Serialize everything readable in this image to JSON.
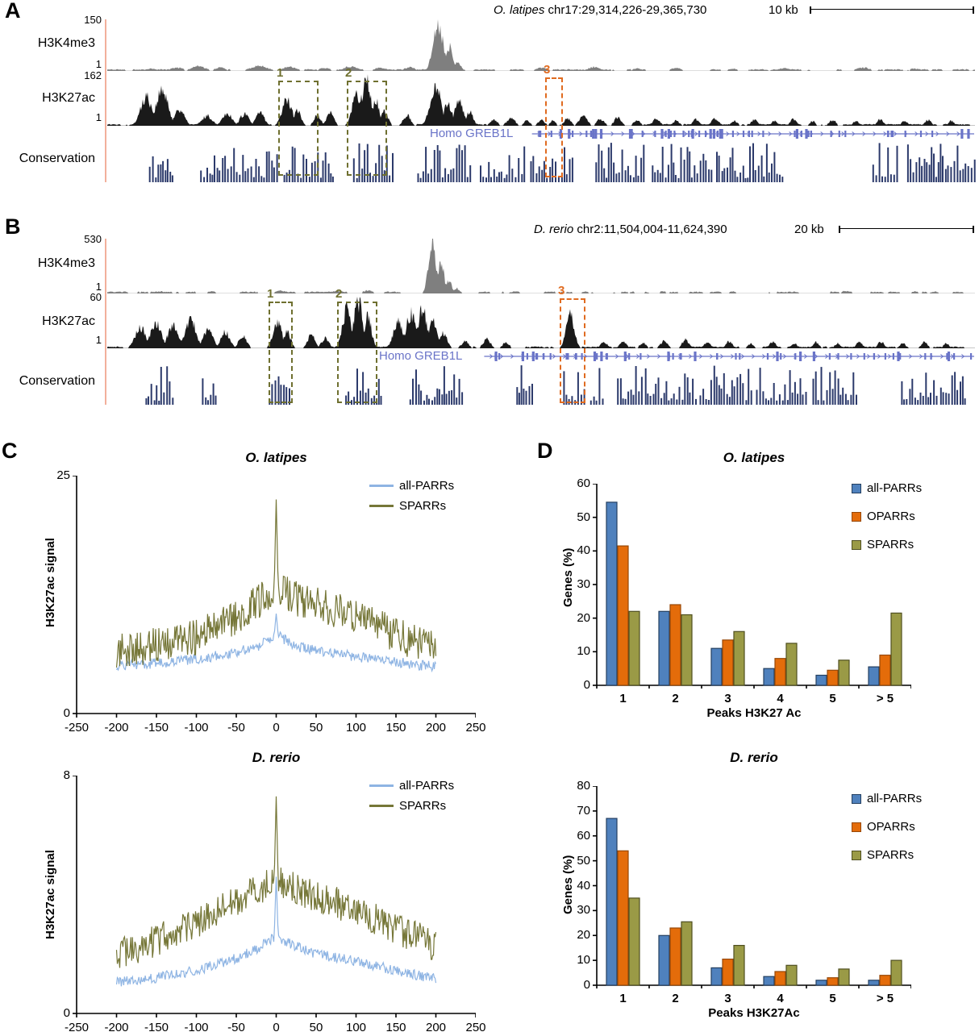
{
  "colors": {
    "blue_bar": "#4f81bd",
    "blue_bar_border": "#243f60",
    "orange_bar": "#e46c0a",
    "orange_bar_border": "#974807",
    "olive_bar": "#9a9a46",
    "olive_bar_border": "#4f4f20",
    "blue_line": "#8eb4e3",
    "olive_line": "#767738",
    "h3k4me3": "#7f7f7f",
    "h3k27ac": "#1a1a1a",
    "gene": "#6a74c8",
    "conservation": "#2c3a6b",
    "box_olive": "#6f7030",
    "box_orange": "#e06b20",
    "axis_line": "#f2b09c"
  },
  "panel_a": {
    "label": "A",
    "species": "O. latipes",
    "coords": " chr17:29,314,226-29,365,730",
    "scale": "10 kb",
    "h3k4me3": {
      "label": "H3K4me3",
      "max": "150",
      "min": "1",
      "peaks": [
        [
          0.05,
          0.05,
          0.012
        ],
        [
          0.08,
          0.07,
          0.015
        ],
        [
          0.105,
          0.1,
          0.018
        ],
        [
          0.13,
          0.07,
          0.014
        ],
        [
          0.175,
          0.1,
          0.022
        ],
        [
          0.21,
          0.08,
          0.018
        ],
        [
          0.25,
          0.06,
          0.014
        ],
        [
          0.28,
          0.09,
          0.018
        ],
        [
          0.315,
          0.07,
          0.014
        ],
        [
          0.348,
          0.08,
          0.012
        ],
        [
          0.381,
          1.0,
          0.012
        ],
        [
          0.393,
          0.52,
          0.009
        ],
        [
          0.403,
          0.2,
          0.008
        ],
        [
          0.5,
          0.06,
          0.016
        ],
        [
          0.56,
          0.08,
          0.014
        ],
        [
          0.61,
          0.05,
          0.012
        ],
        [
          0.655,
          0.06,
          0.014
        ],
        [
          0.72,
          0.05,
          0.012
        ],
        [
          0.78,
          0.06,
          0.014
        ],
        [
          0.87,
          0.07,
          0.016
        ],
        [
          0.93,
          0.05,
          0.012
        ]
      ]
    },
    "h3k27ac": {
      "label": "H3K27ac",
      "max": "162",
      "min": "1",
      "peaks": [
        [
          0.045,
          0.6,
          0.014
        ],
        [
          0.063,
          0.7,
          0.015
        ],
        [
          0.083,
          0.34,
          0.012
        ],
        [
          0.115,
          0.2,
          0.013
        ],
        [
          0.138,
          0.26,
          0.012
        ],
        [
          0.158,
          0.24,
          0.011
        ],
        [
          0.176,
          0.28,
          0.01
        ],
        [
          0.207,
          0.55,
          0.012
        ],
        [
          0.219,
          0.3,
          0.009
        ],
        [
          0.242,
          0.2,
          0.009
        ],
        [
          0.257,
          0.26,
          0.009
        ],
        [
          0.287,
          0.62,
          0.011
        ],
        [
          0.298,
          0.92,
          0.012
        ],
        [
          0.309,
          0.52,
          0.009
        ],
        [
          0.319,
          0.28,
          0.009
        ],
        [
          0.345,
          0.22,
          0.009
        ],
        [
          0.378,
          0.85,
          0.013
        ],
        [
          0.392,
          0.45,
          0.011
        ],
        [
          0.405,
          0.48,
          0.011
        ],
        [
          0.417,
          0.28,
          0.009
        ],
        [
          0.445,
          0.12,
          0.009
        ],
        [
          0.465,
          0.16,
          0.01
        ],
        [
          0.483,
          0.1,
          0.008
        ],
        [
          0.5,
          0.12,
          0.008
        ],
        [
          0.513,
          0.1,
          0.007
        ],
        [
          0.53,
          0.14,
          0.009
        ],
        [
          0.548,
          0.2,
          0.01
        ],
        [
          0.568,
          0.14,
          0.009
        ],
        [
          0.588,
          0.17,
          0.009
        ],
        [
          0.61,
          0.12,
          0.008
        ],
        [
          0.632,
          0.14,
          0.009
        ],
        [
          0.655,
          0.1,
          0.008
        ],
        [
          0.678,
          0.13,
          0.008
        ],
        [
          0.7,
          0.15,
          0.009
        ],
        [
          0.722,
          0.1,
          0.008
        ],
        [
          0.745,
          0.12,
          0.008
        ],
        [
          0.768,
          0.1,
          0.007
        ],
        [
          0.79,
          0.13,
          0.008
        ],
        [
          0.812,
          0.1,
          0.007
        ],
        [
          0.835,
          0.12,
          0.008
        ],
        [
          0.862,
          0.1,
          0.007
        ],
        [
          0.89,
          0.13,
          0.008
        ],
        [
          0.918,
          0.1,
          0.007
        ],
        [
          0.945,
          0.12,
          0.008
        ],
        [
          0.972,
          0.1,
          0.007
        ]
      ]
    },
    "gene": {
      "label": "Homo GREB1L",
      "start": 0.489
    },
    "conservation": {
      "label": "Conservation",
      "clusters": [
        [
          0.048,
          0.028
        ],
        [
          0.107,
          0.09
        ],
        [
          0.203,
          0.056
        ],
        [
          0.283,
          0.045
        ],
        [
          0.357,
          0.062
        ],
        [
          0.429,
          0.051
        ],
        [
          0.487,
          0.05
        ],
        [
          0.562,
          0.058
        ],
        [
          0.627,
          0.069
        ],
        [
          0.701,
          0.078
        ],
        [
          0.881,
          0.028
        ],
        [
          0.921,
          0.077
        ]
      ]
    },
    "boxes": [
      {
        "num": "1",
        "x": 0.197,
        "w": 0.046,
        "color": "olive"
      },
      {
        "num": "2",
        "x": 0.276,
        "w": 0.046,
        "color": "olive"
      },
      {
        "num": "3",
        "x": 0.504,
        "w": 0.02,
        "color": "orange"
      }
    ]
  },
  "panel_b": {
    "label": "B",
    "species": "D. rerio",
    "coords": " chr2:11,504,004-11,624,390",
    "scale": "20 kb",
    "h3k4me3": {
      "label": "H3K4me3",
      "max": "530",
      "min": "1",
      "peaks": [
        [
          0.06,
          0.04,
          0.015
        ],
        [
          0.12,
          0.04,
          0.014
        ],
        [
          0.2,
          0.05,
          0.016
        ],
        [
          0.265,
          0.05,
          0.013
        ],
        [
          0.3,
          0.06,
          0.012
        ],
        [
          0.374,
          1.0,
          0.009
        ],
        [
          0.384,
          0.58,
          0.008
        ],
        [
          0.393,
          0.24,
          0.008
        ],
        [
          0.402,
          0.1,
          0.008
        ],
        [
          0.47,
          0.04,
          0.01
        ],
        [
          0.55,
          0.04,
          0.01
        ],
        [
          0.64,
          0.04,
          0.01
        ],
        [
          0.72,
          0.04,
          0.01
        ],
        [
          0.85,
          0.05,
          0.011
        ],
        [
          0.93,
          0.04,
          0.01
        ]
      ]
    },
    "h3k27ac": {
      "label": "H3K27ac",
      "max": "60",
      "min": "1",
      "peaks": [
        [
          0.038,
          0.42,
          0.013
        ],
        [
          0.056,
          0.52,
          0.013
        ],
        [
          0.076,
          0.48,
          0.013
        ],
        [
          0.096,
          0.58,
          0.013
        ],
        [
          0.116,
          0.38,
          0.012
        ],
        [
          0.136,
          0.33,
          0.011
        ],
        [
          0.156,
          0.24,
          0.01
        ],
        [
          0.196,
          0.52,
          0.011
        ],
        [
          0.207,
          0.33,
          0.009
        ],
        [
          0.235,
          0.28,
          0.009
        ],
        [
          0.251,
          0.21,
          0.009
        ],
        [
          0.276,
          0.78,
          0.011
        ],
        [
          0.289,
          0.95,
          0.011
        ],
        [
          0.3,
          0.65,
          0.009
        ],
        [
          0.335,
          0.52,
          0.012
        ],
        [
          0.35,
          0.7,
          0.013
        ],
        [
          0.363,
          0.76,
          0.012
        ],
        [
          0.375,
          0.52,
          0.011
        ],
        [
          0.387,
          0.33,
          0.009
        ],
        [
          0.412,
          0.14,
          0.009
        ],
        [
          0.437,
          0.19,
          0.009
        ],
        [
          0.459,
          0.12,
          0.008
        ],
        [
          0.533,
          0.68,
          0.01
        ],
        [
          0.572,
          0.12,
          0.009
        ],
        [
          0.594,
          0.15,
          0.008
        ],
        [
          0.617,
          0.11,
          0.008
        ],
        [
          0.641,
          0.14,
          0.009
        ],
        [
          0.666,
          0.17,
          0.009
        ],
        [
          0.691,
          0.12,
          0.008
        ],
        [
          0.716,
          0.14,
          0.008
        ],
        [
          0.741,
          0.1,
          0.007
        ],
        [
          0.766,
          0.13,
          0.008
        ],
        [
          0.791,
          0.1,
          0.007
        ],
        [
          0.816,
          0.12,
          0.008
        ],
        [
          0.841,
          0.1,
          0.007
        ],
        [
          0.866,
          0.12,
          0.008
        ],
        [
          0.891,
          0.13,
          0.008
        ],
        [
          0.916,
          0.1,
          0.007
        ],
        [
          0.941,
          0.12,
          0.008
        ],
        [
          0.966,
          0.1,
          0.007
        ]
      ]
    },
    "gene": {
      "label": "Homo GREB1L",
      "start": 0.434
    },
    "conservation": {
      "label": "Conservation",
      "clusters": [
        [
          0.044,
          0.032
        ],
        [
          0.109,
          0.017
        ],
        [
          0.186,
          0.025
        ],
        [
          0.274,
          0.041
        ],
        [
          0.348,
          0.062
        ],
        [
          0.471,
          0.02
        ],
        [
          0.525,
          0.026
        ],
        [
          0.556,
          0.015
        ],
        [
          0.587,
          0.028
        ],
        [
          0.619,
          0.058
        ],
        [
          0.682,
          0.059
        ],
        [
          0.747,
          0.059
        ],
        [
          0.812,
          0.05
        ],
        [
          0.914,
          0.041
        ],
        [
          0.959,
          0.03
        ]
      ]
    },
    "boxes": [
      {
        "num": "1",
        "x": 0.186,
        "w": 0.028,
        "color": "olive"
      },
      {
        "num": "2",
        "x": 0.265,
        "w": 0.046,
        "color": "olive"
      },
      {
        "num": "3",
        "x": 0.521,
        "w": 0.03,
        "color": "orange"
      }
    ]
  },
  "chart_data": [
    {
      "id": "lineC1",
      "type": "line",
      "title": "O. latipes",
      "ylabel": "H3K27ac signal",
      "xlim": [
        -250,
        250
      ],
      "ylim": [
        0,
        25
      ],
      "xticks": [
        -250,
        -200,
        -150,
        -100,
        -50,
        0,
        50,
        100,
        150,
        200,
        250
      ],
      "yticks": [
        0,
        25
      ],
      "legend_position": "top-right",
      "grid": false,
      "series": [
        {
          "name": "all-PARRs",
          "color": "blue_line",
          "noise": 0.55,
          "peak0": 10.5,
          "x": [
            -200,
            -150,
            -100,
            -50,
            -25,
            0,
            25,
            50,
            100,
            150,
            200
          ],
          "y": [
            5.0,
            5.3,
            5.7,
            6.4,
            7.0,
            8.3,
            7.0,
            6.6,
            6.0,
            5.4,
            4.9
          ]
        },
        {
          "name": "SPARRs",
          "color": "olive_line",
          "noise": 1.9,
          "peak0": 22.5,
          "x": [
            -200,
            -150,
            -100,
            -50,
            -25,
            0,
            25,
            50,
            100,
            150,
            200
          ],
          "y": [
            6.6,
            7.2,
            8.0,
            10.2,
            11.6,
            13.2,
            12.1,
            11.4,
            10.2,
            8.2,
            6.9
          ]
        }
      ]
    },
    {
      "id": "lineC2",
      "type": "line",
      "title": "D. rerio",
      "ylabel": "H3K27ac signal",
      "xlim": [
        -250,
        250
      ],
      "ylim": [
        0,
        8
      ],
      "xticks": [
        -250,
        -200,
        -150,
        -100,
        -50,
        0,
        50,
        100,
        150,
        200,
        250
      ],
      "yticks": [
        0,
        8
      ],
      "legend_position": "top-right",
      "grid": false,
      "series": [
        {
          "name": "all-PARRs",
          "color": "blue_line",
          "noise": 0.17,
          "peak0": 4.6,
          "x": [
            -200,
            -150,
            -100,
            -50,
            -25,
            0,
            25,
            50,
            100,
            150,
            200
          ],
          "y": [
            1.05,
            1.2,
            1.45,
            1.85,
            2.15,
            2.6,
            2.25,
            2.0,
            1.75,
            1.45,
            1.15
          ]
        },
        {
          "name": "SPARRs",
          "color": "olive_line",
          "noise": 0.55,
          "peak0": 7.3,
          "x": [
            -200,
            -150,
            -100,
            -50,
            -25,
            0,
            25,
            50,
            100,
            150,
            200
          ],
          "y": [
            2.0,
            2.45,
            3.05,
            3.8,
            4.1,
            4.45,
            4.2,
            3.95,
            3.5,
            2.8,
            2.3
          ]
        }
      ]
    },
    {
      "id": "barD1",
      "type": "bar",
      "title": "O. latipes",
      "ylabel": "Genes (%)",
      "xlabel": "Peaks H3K27 Ac",
      "ylim": [
        0,
        60
      ],
      "ystep": 10,
      "grid": false,
      "legend_position": "top-right",
      "categories": [
        "1",
        "2",
        "3",
        "4",
        "5",
        "> 5"
      ],
      "series": [
        {
          "name": "all-PARRs",
          "color": "blue_bar",
          "border": "blue_bar_border",
          "values": [
            54.5,
            22,
            11,
            5,
            3,
            5.5
          ]
        },
        {
          "name": "OPARRs",
          "color": "orange_bar",
          "border": "orange_bar_border",
          "values": [
            41.5,
            24,
            13.5,
            8,
            4.5,
            9
          ]
        },
        {
          "name": "SPARRs",
          "color": "olive_bar",
          "border": "olive_bar_border",
          "values": [
            22,
            21,
            16,
            12.5,
            7.5,
            21.5
          ]
        }
      ]
    },
    {
      "id": "barD2",
      "type": "bar",
      "title": "D. rerio",
      "ylabel": "Genes (%)",
      "xlabel": "Peaks H3K27Ac",
      "ylim": [
        0,
        80
      ],
      "ystep": 10,
      "grid": false,
      "legend_position": "top-right",
      "categories": [
        "1",
        "2",
        "3",
        "4",
        "5",
        "> 5"
      ],
      "series": [
        {
          "name": "all-PARRs",
          "color": "blue_bar",
          "border": "blue_bar_border",
          "values": [
            67,
            20,
            7,
            3.5,
            2,
            2
          ]
        },
        {
          "name": "OPARRs",
          "color": "orange_bar",
          "border": "orange_bar_border",
          "values": [
            54,
            23,
            10.5,
            5.5,
            3,
            4
          ]
        },
        {
          "name": "SPARRs",
          "color": "olive_bar",
          "border": "olive_bar_border",
          "values": [
            35,
            25.5,
            16,
            8,
            6.5,
            10
          ]
        }
      ]
    }
  ]
}
